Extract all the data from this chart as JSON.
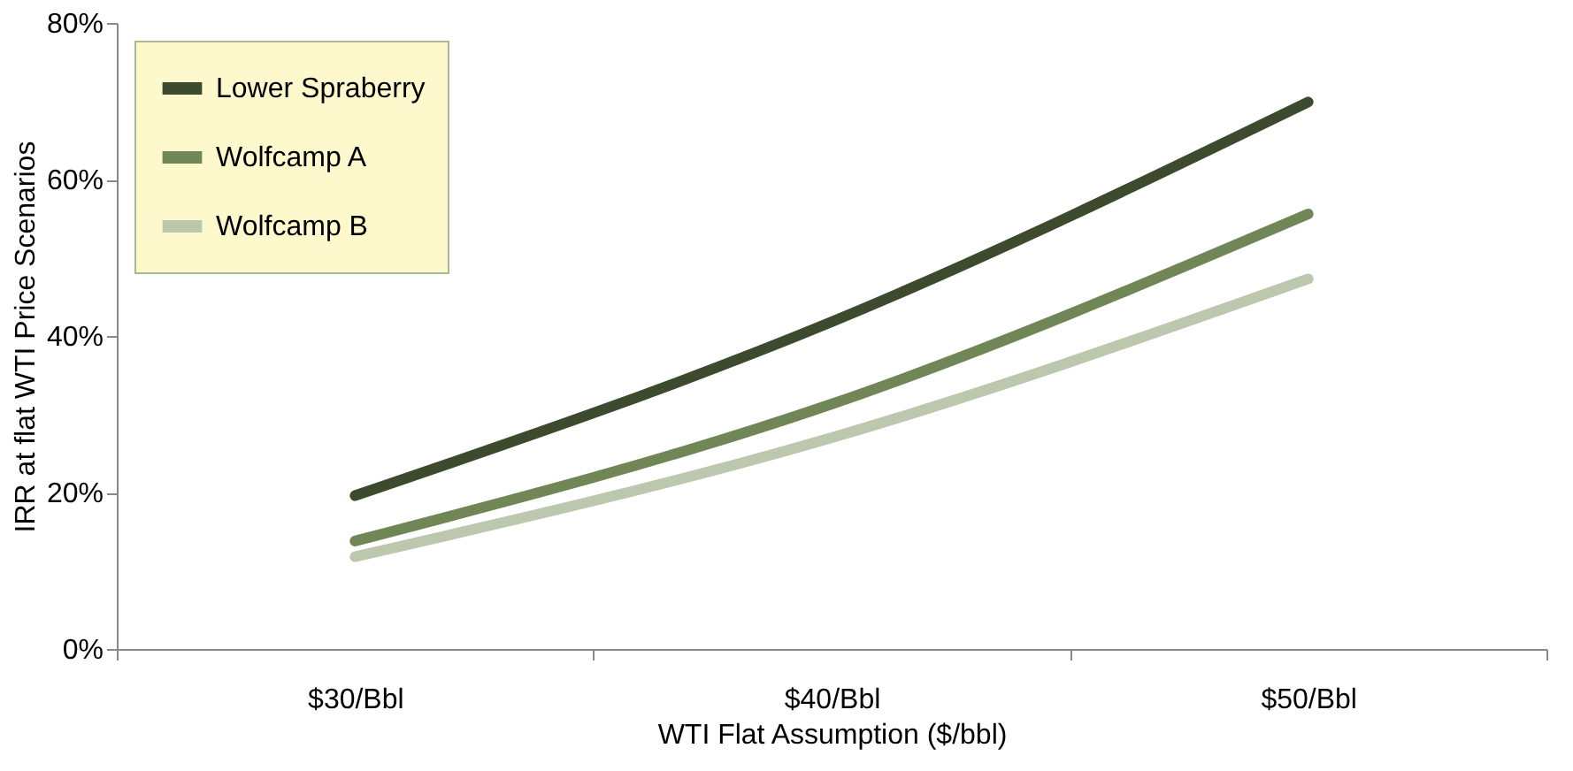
{
  "chart_data": {
    "type": "line",
    "xlabel": "WTI Flat Assumption ($/bbl)",
    "ylabel": "IRR at flat WTI Price Scenarios",
    "categories": [
      "$30/Bbl",
      "$40/Bbl",
      "$50/Bbl"
    ],
    "series": [
      {
        "name": "Lower Spraberry",
        "color": "#3d4a2e",
        "values": [
          19.6,
          41.8,
          69.9
        ]
      },
      {
        "name": "Wolfcamp A",
        "color": "#718657",
        "values": [
          13.8,
          31.3,
          55.6
        ]
      },
      {
        "name": "Wolfcamp B",
        "color": "#bcc7ad",
        "values": [
          11.8,
          27.0,
          47.3
        ]
      }
    ],
    "ylim": [
      0,
      80
    ],
    "yticks": [
      {
        "value": 0,
        "label": "0%"
      },
      {
        "value": 20,
        "label": "20%"
      },
      {
        "value": 40,
        "label": "40%"
      },
      {
        "value": 60,
        "label": "60%"
      },
      {
        "value": 80,
        "label": "80%"
      }
    ],
    "grid": false,
    "legend": "top left",
    "marker": "none",
    "line_style": "solid"
  }
}
